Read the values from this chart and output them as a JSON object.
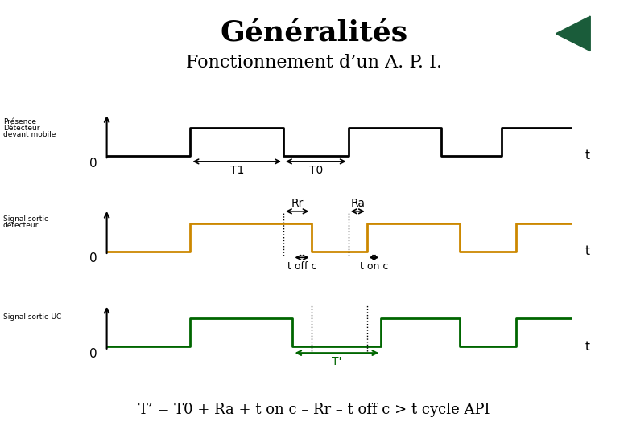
{
  "title": "Généralités",
  "subtitle": "Fonctionnement d’un A. P. I.",
  "title_fontsize": 26,
  "subtitle_fontsize": 16,
  "background_color": "#ffffff",
  "signal1_label_line1": "Présence",
  "signal1_label_line2": "Détecteur",
  "signal1_label_line3": "devant mobile",
  "signal2_label_line1": "Signal sortie",
  "signal2_label_line2": "détecteur",
  "signal3_label_line1": "Signal sortie UC",
  "signal_color1": "#000000",
  "signal_color2": "#cc8800",
  "signal_color3": "#006600",
  "formula": "T’ = T0 + Ra + t on c – Rr – t off c > t cycle API",
  "formula_fontsize": 13,
  "nav_box_color": "#00b896",
  "nav_triangle_color": "#1a5c3a",
  "TL": 10.0,
  "s1_p1_on": 1.8,
  "s1_p1_off": 3.8,
  "s1_p2_on": 5.2,
  "s1_p2_off": 7.2,
  "s1_p3_on": 8.5,
  "s1_p3_off": 10.6,
  "s2_p1_on": 1.8,
  "s2_p1_off": 4.4,
  "s2_p2_on": 5.6,
  "s2_p2_off": 7.6,
  "s2_p3_on": 8.8,
  "s2_p3_off": 10.6,
  "s3_p1_on": 1.8,
  "s3_p1_off": 4.0,
  "s3_p2_on": 5.9,
  "s3_p2_off": 7.6,
  "s3_p3_on": 8.8,
  "s3_p3_off": 10.6
}
